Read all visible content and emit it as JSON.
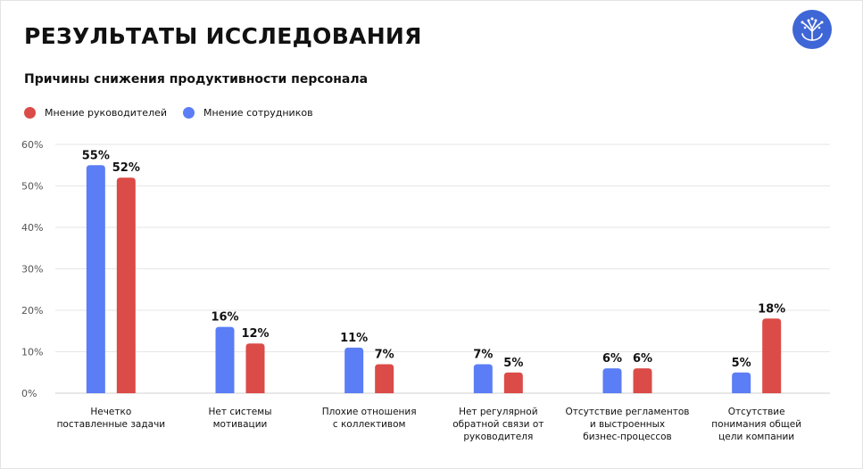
{
  "page": {
    "title": "РЕЗУЛЬТАТЫ ИССЛЕДОВАНИЯ",
    "logo_icon": "tree-logo-icon"
  },
  "colors": {
    "managers": "#DB4B47",
    "employees": "#5B7DF5",
    "logo": "#3F66D6"
  },
  "chart_data": {
    "type": "bar",
    "title": "Причины снижения продуктивности персонала",
    "categories": [
      [
        "Нечетко",
        "поставленные задачи"
      ],
      [
        "Нет системы",
        "мотивации"
      ],
      [
        "Плохие отношения",
        "с коллективом"
      ],
      [
        "Нет регулярной",
        "обратной связи от",
        "руководителя"
      ],
      [
        "Отсутствие регламентов",
        "и выстроенных",
        "бизнес-процессов"
      ],
      [
        "Отсутствие",
        "понимания общей",
        "цели компании"
      ]
    ],
    "series": [
      {
        "name": "Мнение сотрудников",
        "values": [
          55,
          16,
          11,
          7,
          6,
          5
        ]
      },
      {
        "name": "Мнение руководителей",
        "values": [
          52,
          12,
          7,
          5,
          6,
          18
        ]
      }
    ],
    "value_suffix": "%",
    "ylim": [
      0,
      60
    ],
    "yticks": [
      "0%",
      "10%",
      "20%",
      "30%",
      "40%",
      "50%",
      "60%"
    ],
    "grid": true,
    "legend": [
      {
        "name": "Мнение руководителей",
        "color": "#DB4B47"
      },
      {
        "name": "Мнение сотрудников",
        "color": "#5B7DF5"
      }
    ],
    "legend_position": "top-left"
  }
}
